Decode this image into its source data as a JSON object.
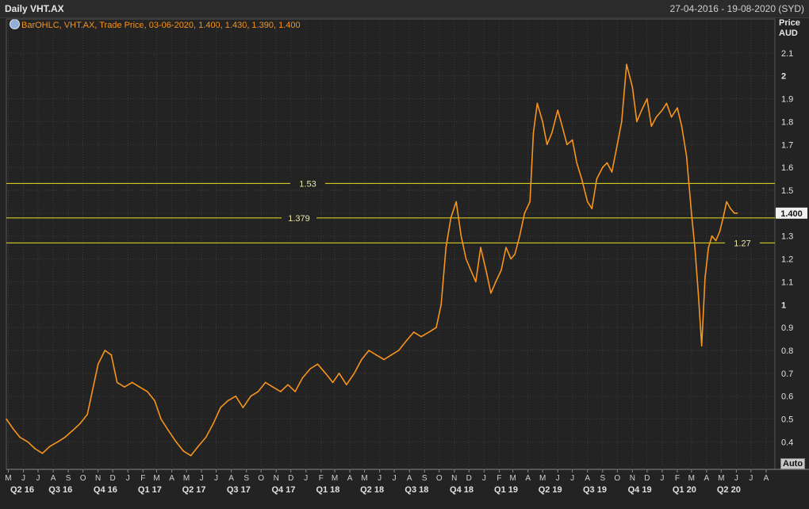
{
  "header": {
    "title": "Daily VHT.AX",
    "date_range": "27-04-2016 - 19-08-2020 (SYD)"
  },
  "legend": {
    "text": "BarOHLC, VHT.AX, Trade Price, 03-06-2020, 1.400, 1.430, 1.390, 1.400",
    "icon": "chart-settings-icon"
  },
  "axis": {
    "price_label": "Price",
    "currency_label": "AUD",
    "auto_label": "Auto"
  },
  "colors": {
    "background": "#232323",
    "price_line": "#f7941d",
    "horizontal_lines": "#e8e020",
    "grid": "#3c3c3c"
  },
  "chart_data": {
    "type": "line",
    "series": [
      {
        "x": [
          "2016-04-27",
          "2016-05-10",
          "2016-05-25",
          "2016-06-10",
          "2016-06-25",
          "2016-07-10",
          "2016-07-25",
          "2016-08-10",
          "2016-08-25",
          "2016-09-10",
          "2016-09-25",
          "2016-10-10",
          "2016-10-20",
          "2016-11-01",
          "2016-11-15",
          "2016-11-28",
          "2016-12-10",
          "2016-12-25",
          "2017-01-10",
          "2017-01-25",
          "2017-02-10",
          "2017-02-25",
          "2017-03-10",
          "2017-03-25",
          "2017-04-10",
          "2017-04-25",
          "2017-05-10",
          "2017-05-25",
          "2017-06-10",
          "2017-06-25",
          "2017-07-10",
          "2017-07-25",
          "2017-08-10",
          "2017-08-25",
          "2017-09-10",
          "2017-09-25",
          "2017-10-10",
          "2017-10-25",
          "2017-11-10",
          "2017-11-25",
          "2017-12-10",
          "2017-12-25",
          "2018-01-10",
          "2018-01-25",
          "2018-02-10",
          "2018-02-25",
          "2018-03-10",
          "2018-03-25",
          "2018-04-10",
          "2018-04-25",
          "2018-05-10",
          "2018-05-25",
          "2018-06-10",
          "2018-06-25",
          "2018-07-10",
          "2018-07-25",
          "2018-08-10",
          "2018-08-25",
          "2018-09-10",
          "2018-09-25",
          "2018-10-05",
          "2018-10-15",
          "2018-10-25",
          "2018-11-05",
          "2018-11-15",
          "2018-11-25",
          "2018-12-05",
          "2018-12-15",
          "2018-12-25",
          "2019-01-05",
          "2019-01-15",
          "2019-01-25",
          "2019-02-05",
          "2019-02-15",
          "2019-02-25",
          "2019-03-05",
          "2019-03-15",
          "2019-03-25",
          "2019-04-05",
          "2019-04-12",
          "2019-04-20",
          "2019-05-01",
          "2019-05-10",
          "2019-05-20",
          "2019-06-01",
          "2019-06-10",
          "2019-06-20",
          "2019-07-01",
          "2019-07-10",
          "2019-07-20",
          "2019-08-01",
          "2019-08-10",
          "2019-08-20",
          "2019-09-01",
          "2019-09-10",
          "2019-09-20",
          "2019-10-01",
          "2019-10-10",
          "2019-10-20",
          "2019-11-01",
          "2019-11-10",
          "2019-11-20",
          "2019-12-01",
          "2019-12-10",
          "2019-12-20",
          "2020-01-01",
          "2020-01-10",
          "2020-01-20",
          "2020-02-01",
          "2020-02-10",
          "2020-02-20",
          "2020-03-01",
          "2020-03-08",
          "2020-03-15",
          "2020-03-22",
          "2020-03-29",
          "2020-04-05",
          "2020-04-12",
          "2020-04-20",
          "2020-04-28",
          "2020-05-05",
          "2020-05-12",
          "2020-05-20",
          "2020-05-28",
          "2020-06-03"
        ],
        "y": [
          0.5,
          0.46,
          0.42,
          0.4,
          0.37,
          0.35,
          0.38,
          0.4,
          0.42,
          0.45,
          0.48,
          0.52,
          0.62,
          0.74,
          0.8,
          0.78,
          0.66,
          0.64,
          0.66,
          0.64,
          0.62,
          0.58,
          0.5,
          0.45,
          0.4,
          0.36,
          0.34,
          0.38,
          0.42,
          0.48,
          0.55,
          0.58,
          0.6,
          0.55,
          0.6,
          0.62,
          0.66,
          0.64,
          0.62,
          0.65,
          0.62,
          0.68,
          0.72,
          0.74,
          0.7,
          0.66,
          0.7,
          0.65,
          0.7,
          0.76,
          0.8,
          0.78,
          0.76,
          0.78,
          0.8,
          0.84,
          0.88,
          0.86,
          0.88,
          0.9,
          1.0,
          1.25,
          1.38,
          1.45,
          1.3,
          1.2,
          1.15,
          1.1,
          1.25,
          1.15,
          1.05,
          1.1,
          1.15,
          1.25,
          1.2,
          1.22,
          1.3,
          1.4,
          1.45,
          1.75,
          1.88,
          1.8,
          1.7,
          1.75,
          1.85,
          1.78,
          1.7,
          1.72,
          1.62,
          1.55,
          1.45,
          1.42,
          1.55,
          1.6,
          1.62,
          1.58,
          1.7,
          1.8,
          2.05,
          1.95,
          1.8,
          1.85,
          1.9,
          1.78,
          1.82,
          1.85,
          1.88,
          1.82,
          1.86,
          1.78,
          1.65,
          1.4,
          1.25,
          1.05,
          0.82,
          1.12,
          1.25,
          1.3,
          1.28,
          1.32,
          1.38,
          1.45,
          1.42,
          1.4,
          1.4
        ]
      }
    ],
    "ylim": [
      0.28,
      2.2
    ],
    "yticks": [
      "2.1",
      "2",
      "1.9",
      "1.8",
      "1.7",
      "1.6",
      "1.5",
      "1.4",
      "1.3",
      "1.2",
      "1.1",
      "1",
      "0.9",
      "0.8",
      "0.7",
      "0.6",
      "0.5",
      "0.4"
    ],
    "ytick_values": [
      2.1,
      2,
      1.9,
      1.8,
      1.7,
      1.6,
      1.5,
      1.4,
      1.3,
      1.2,
      1.1,
      1,
      0.9,
      0.8,
      0.7,
      0.6,
      0.5,
      0.4
    ],
    "last_price": "1.400",
    "hlines": [
      {
        "value": 1.53,
        "label": "1.53"
      },
      {
        "value": 1.379,
        "label": "1.379"
      },
      {
        "value": 1.27,
        "label": "1.27"
      }
    ],
    "month_ticks": [
      "M",
      "J",
      "J",
      "A",
      "S",
      "O",
      "N",
      "D",
      "J",
      "F",
      "M",
      "A",
      "M",
      "J",
      "J",
      "A",
      "S",
      "O",
      "N",
      "D",
      "J",
      "F",
      "M",
      "A",
      "M",
      "J",
      "J",
      "A",
      "S",
      "O",
      "N",
      "D",
      "J",
      "F",
      "M",
      "A",
      "M",
      "J",
      "J",
      "A",
      "S",
      "O",
      "N",
      "D",
      "J",
      "F",
      "M",
      "A",
      "M",
      "J",
      "J",
      "A"
    ],
    "quarter_ticks": [
      "Q2 16",
      "Q3 16",
      "Q4 16",
      "Q1 17",
      "Q2 17",
      "Q3 17",
      "Q4 17",
      "Q1 18",
      "Q2 18",
      "Q3 18",
      "Q4 18",
      "Q1 19",
      "Q2 19",
      "Q3 19",
      "Q4 19",
      "Q1 20",
      "Q2 20"
    ],
    "xlim": [
      "2016-04-27",
      "2020-08-19"
    ],
    "grid": true
  }
}
